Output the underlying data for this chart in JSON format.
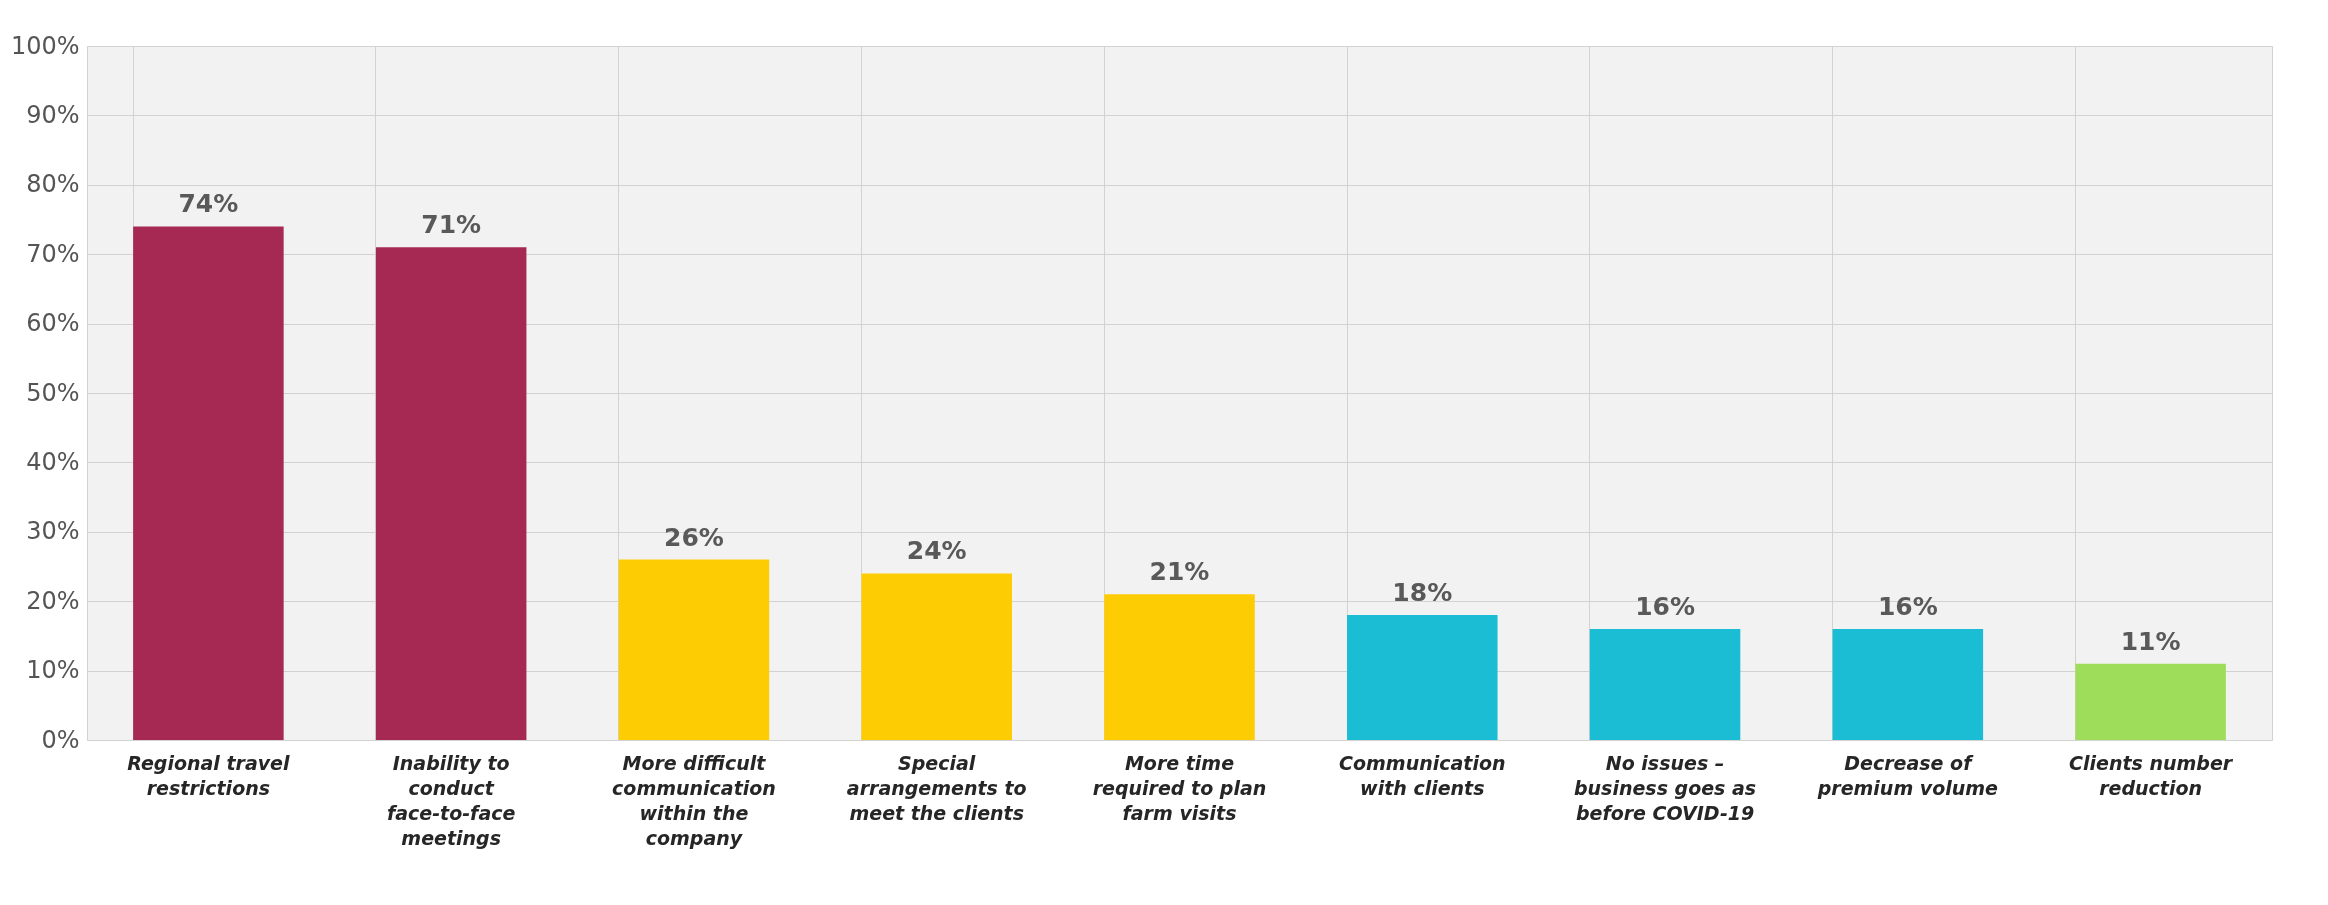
{
  "chart_data": {
    "type": "bar",
    "categories": [
      "Regional travel restrictions",
      "Inability to conduct face-to-face meetings",
      "More difficult communication within the company",
      "Special arrangements to meet the clients",
      "More time required to plan farm visits",
      "Communication with clients",
      "No issues – business goes as before COVID-19",
      "Decrease of premium volume",
      "Clients number reduction"
    ],
    "values": [
      74,
      71,
      26,
      24,
      21,
      18,
      16,
      16,
      11
    ],
    "colors": [
      "#a62953",
      "#a62953",
      "#fecc03",
      "#fecc03",
      "#fecc03",
      "#1bbdd4",
      "#1bbdd4",
      "#1bbdd4",
      "#9ddd5a"
    ],
    "value_labels": [
      "74%",
      "71%",
      "26%",
      "24%",
      "21%",
      "18%",
      "16%",
      "16%",
      "11%"
    ],
    "ylim": [
      0,
      100
    ],
    "yticks": [
      {
        "value": 0,
        "label": "0%"
      },
      {
        "value": 10,
        "label": "10%"
      },
      {
        "value": 20,
        "label": "20%"
      },
      {
        "value": 30,
        "label": "30%"
      },
      {
        "value": 40,
        "label": "40%"
      },
      {
        "value": 50,
        "label": "50%"
      },
      {
        "value": 60,
        "label": "60%"
      },
      {
        "value": 70,
        "label": "70%"
      },
      {
        "value": 80,
        "label": "80%"
      },
      {
        "value": 90,
        "label": "90%"
      },
      {
        "value": 100,
        "label": "100%"
      }
    ],
    "grid": true
  }
}
